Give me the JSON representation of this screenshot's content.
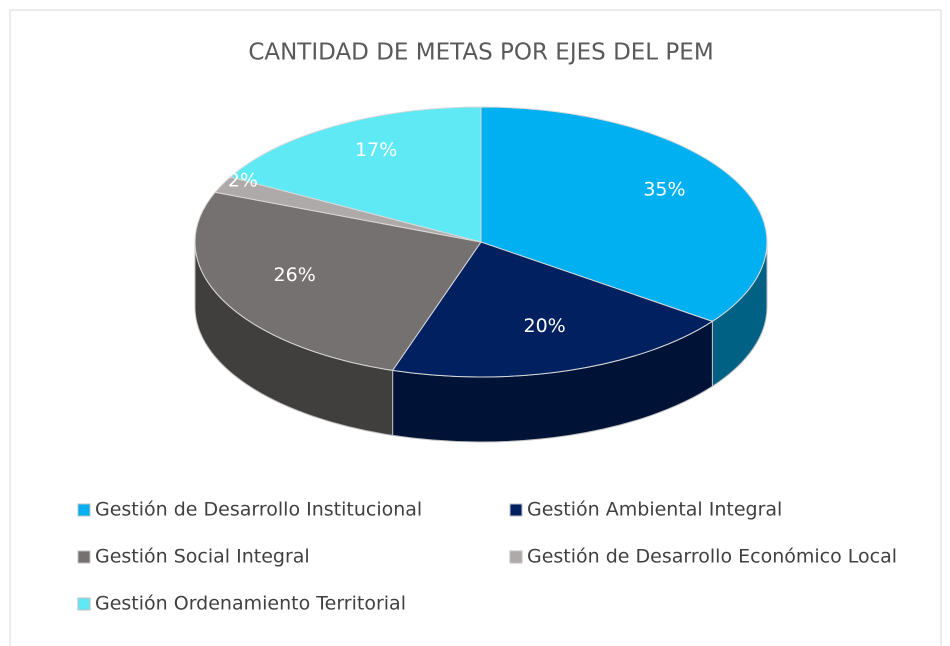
{
  "chart_data": {
    "type": "pie",
    "title": "CANTIDAD DE METAS POR EJES DEL PEM",
    "categories": [
      "Gestión de Desarrollo Institucional",
      "Gestión Ambiental Integral",
      "Gestión Social Integral",
      "Gestión de Desarrollo Económico Local",
      "Gestión Ordenamiento Territorial"
    ],
    "values": [
      35,
      20,
      26,
      2,
      17
    ],
    "value_labels": [
      "35%",
      "20%",
      "26%",
      "2%",
      "17%"
    ],
    "colors": [
      "#00b0f0",
      "#002060",
      "#767171",
      "#aeaaaa",
      "#5ee9f5"
    ],
    "legend": "bottom"
  }
}
